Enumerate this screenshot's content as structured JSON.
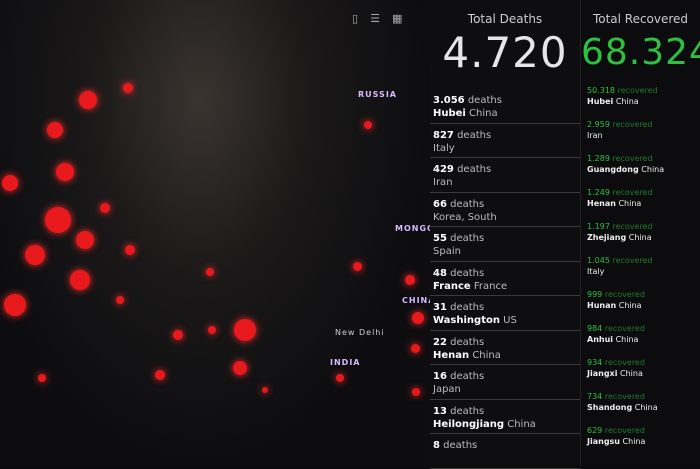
{
  "map": {
    "labels": [
      "RUSSIA",
      "MONGO",
      "CHINA",
      "INDIA",
      "New Delhi"
    ]
  },
  "toolbar": {
    "icons": [
      "device-icon",
      "list-icon",
      "grid-icon"
    ]
  },
  "deaths": {
    "title": "Total Deaths",
    "total": "4.720",
    "unit": "deaths",
    "items": [
      {
        "count": "3.056",
        "region": "Hubei",
        "country": "China"
      },
      {
        "count": "827",
        "region": "",
        "country": "Italy"
      },
      {
        "count": "429",
        "region": "",
        "country": "Iran"
      },
      {
        "count": "66",
        "region": "",
        "country": "Korea, South"
      },
      {
        "count": "55",
        "region": "",
        "country": "Spain"
      },
      {
        "count": "48",
        "region": "France",
        "country": "France"
      },
      {
        "count": "31",
        "region": "Washington",
        "country": "US"
      },
      {
        "count": "22",
        "region": "Henan",
        "country": "China"
      },
      {
        "count": "16",
        "region": "",
        "country": "Japan"
      },
      {
        "count": "13",
        "region": "Heilongjiang",
        "country": "China"
      },
      {
        "count": "8",
        "region": "",
        "country": ""
      }
    ]
  },
  "recovered": {
    "title": "Total Recovered",
    "total": "68.324",
    "unit": "recovered",
    "accent": "#2ec040",
    "items": [
      {
        "count": "50.318",
        "region": "Hubei",
        "country": "China"
      },
      {
        "count": "2.959",
        "region": "",
        "country": "Iran"
      },
      {
        "count": "1.289",
        "region": "Guangdong",
        "country": "China"
      },
      {
        "count": "1.249",
        "region": "Henan",
        "country": "China"
      },
      {
        "count": "1.197",
        "region": "Zhejiang",
        "country": "China"
      },
      {
        "count": "1.045",
        "region": "",
        "country": "Italy"
      },
      {
        "count": "999",
        "region": "Hunan",
        "country": "China"
      },
      {
        "count": "984",
        "region": "Anhui",
        "country": "China"
      },
      {
        "count": "934",
        "region": "Jiangxi",
        "country": "China"
      },
      {
        "count": "734",
        "region": "Shandong",
        "country": "China"
      },
      {
        "count": "629",
        "region": "Jiangsu",
        "country": "China"
      }
    ]
  }
}
